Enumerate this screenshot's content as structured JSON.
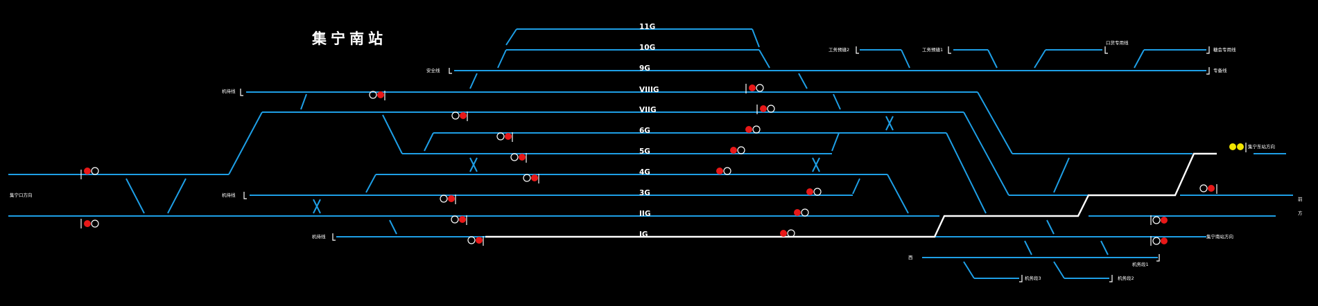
{
  "station_name": "集宁南站",
  "track_labels": {
    "t11g": "11G",
    "t10g": "10G",
    "t9g": "9G",
    "t8g": "VIIIG",
    "t7g": "VIIG",
    "t6g": "6G",
    "t5g": "5G",
    "t4g": "4G",
    "t3g": "3G",
    "t2g": "IIG",
    "t1g": "IG"
  },
  "siding_labels": {
    "anquan": "安全线",
    "jiyou_top": "机待线",
    "jiyou_mid": "机待线",
    "jiyou_bottom": "机待线",
    "gongwu2": "工务预缝2",
    "gongwu1": "工务预缝1",
    "zhuanyong": "口货专用线",
    "right_top1": "糖会专用线",
    "right_top2": "专备线",
    "left_main": "集宁口方向",
    "right_east": "集宁东站方向",
    "right_mid_a": "前",
    "right_mid_b": "方",
    "right_south": "集宁南站方向",
    "bottom_left": "西",
    "bottom_r1": "机务段1",
    "bottom_r2": "机务段2",
    "bottom_r3": "机务段3"
  },
  "colors": {
    "track": "#1e9fe6",
    "route": "#ffffff",
    "signal_red": "#e81818",
    "signal_yellow": "#f2e600",
    "background": "#000000"
  }
}
